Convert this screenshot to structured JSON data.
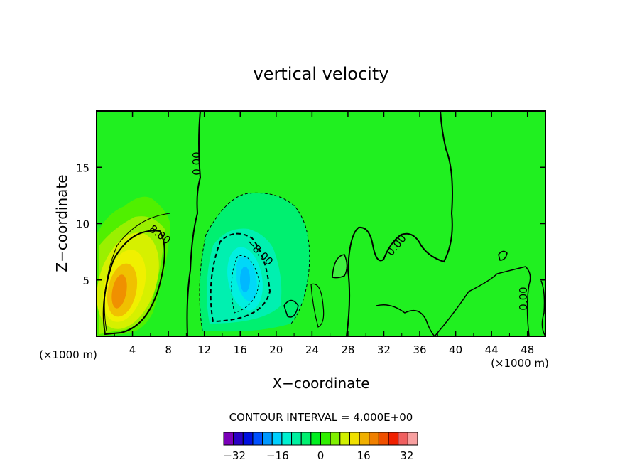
{
  "chart_data": {
    "type": "heatmap",
    "title": "vertical velocity",
    "xlabel": "X−coordinate",
    "ylabel": "Z−coordinate",
    "x_unit": "(×1000 m)",
    "xlim": [
      0,
      50
    ],
    "ylim": [
      0,
      20
    ],
    "x_ticks": [
      "4",
      "8",
      "12",
      "16",
      "20",
      "24",
      "28",
      "32",
      "36",
      "40",
      "44",
      "48"
    ],
    "y_ticks": [
      "5",
      "10",
      "15"
    ],
    "contour_labels": [
      "0.00",
      "8.00",
      "−8.00",
      "0.00",
      "0.00"
    ],
    "updraft_max": 16,
    "downdraft_min": -12,
    "contour_interval_text": "CONTOUR INTERVAL = 4.000E+00",
    "colorbar": {
      "min": -36,
      "max": 36,
      "step": 4,
      "tick_labels": [
        "−32",
        "−16",
        "0",
        "16",
        "32"
      ],
      "colors": [
        "#7a00b8",
        "#2a00c4",
        "#0010e0",
        "#0050ff",
        "#0098ff",
        "#00d0ff",
        "#00f0d0",
        "#00f0a0",
        "#00f070",
        "#00f020",
        "#30f000",
        "#80f000",
        "#d0f000",
        "#f0e000",
        "#f0b000",
        "#f08000",
        "#f05000",
        "#f02000",
        "#f06060",
        "#f8a0a0"
      ]
    }
  }
}
